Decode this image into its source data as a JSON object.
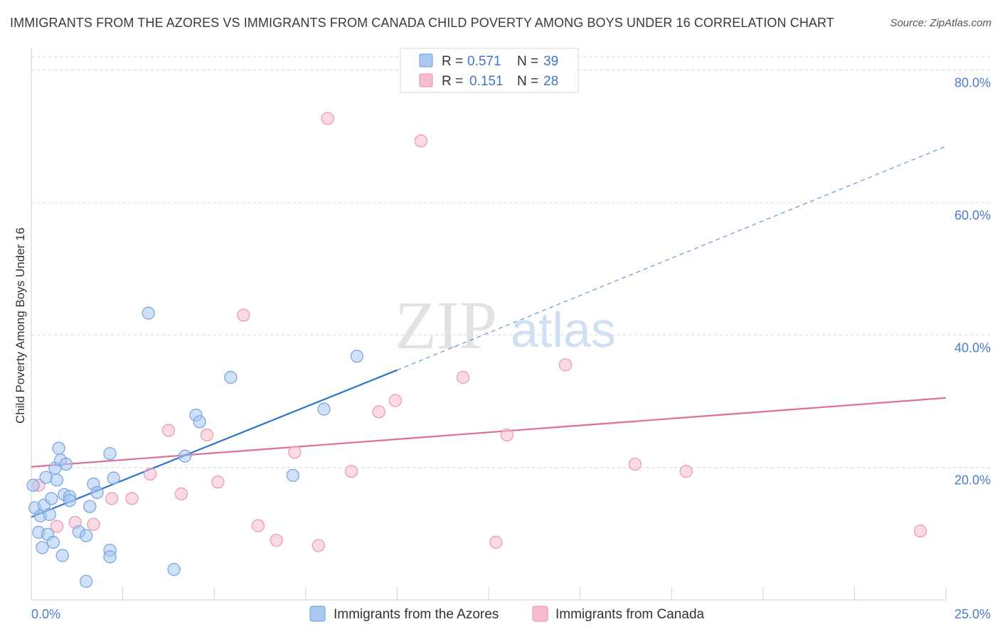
{
  "title": "IMMIGRANTS FROM THE AZORES VS IMMIGRANTS FROM CANADA CHILD POVERTY AMONG BOYS UNDER 16 CORRELATION CHART",
  "source": "Source: ZipAtlas.com",
  "watermark": {
    "zip": "ZIP",
    "atlas": "atlas"
  },
  "colors": {
    "azores_fill": "#aac8f0",
    "azores_stroke": "#7aa6e0",
    "azores_line": "#2f72c9",
    "canada_fill": "#f6bccd",
    "canada_stroke": "#ee9ab4",
    "canada_line": "#e06d96",
    "grid": "#d9d9d9",
    "axis_text": "#4a7bc8"
  },
  "chart_data": {
    "type": "scatter",
    "title": "IMMIGRANTS FROM THE AZORES VS IMMIGRANTS FROM CANADA CHILD POVERTY AMONG BOYS UNDER 16 CORRELATION CHART",
    "xlabel": "",
    "ylabel": "Child Poverty Among Boys Under 16",
    "xlim": [
      0,
      25
    ],
    "ylim": [
      0,
      82
    ],
    "x_tick_labels": [
      "0.0%",
      "25.0%"
    ],
    "y_ticks": [
      20,
      40,
      60,
      80
    ],
    "y_tick_labels": [
      "20.0%",
      "40.0%",
      "60.0%",
      "80.0%"
    ],
    "grid": true,
    "legend_position": "top-center",
    "stats": [
      {
        "r_label": "R = ",
        "r": "0.571",
        "n_label": "N = ",
        "n": "39"
      },
      {
        "r_label": "R = ",
        "r": "0.151",
        "n_label": "N = ",
        "n": "28"
      }
    ],
    "series": [
      {
        "name": "Immigrants from the Azores",
        "trend": {
          "x": [
            0,
            10
          ],
          "y": [
            12.5,
            34.7
          ],
          "dashed_to": [
            25,
            68.5
          ]
        },
        "points": [
          [
            0.05,
            17.3
          ],
          [
            0.1,
            13.9
          ],
          [
            0.2,
            10.2
          ],
          [
            0.25,
            12.7
          ],
          [
            0.3,
            7.9
          ],
          [
            0.35,
            14.3
          ],
          [
            0.4,
            18.5
          ],
          [
            0.45,
            9.9
          ],
          [
            0.5,
            12.9
          ],
          [
            0.55,
            15.3
          ],
          [
            0.6,
            8.7
          ],
          [
            0.65,
            19.9
          ],
          [
            0.7,
            18.1
          ],
          [
            0.75,
            22.9
          ],
          [
            0.8,
            21.1
          ],
          [
            0.85,
            6.7
          ],
          [
            0.9,
            15.9
          ],
          [
            0.95,
            20.5
          ],
          [
            1.05,
            15.6
          ],
          [
            1.05,
            15.0
          ],
          [
            1.3,
            10.3
          ],
          [
            1.5,
            9.7
          ],
          [
            1.5,
            2.8
          ],
          [
            1.6,
            14.1
          ],
          [
            1.7,
            17.5
          ],
          [
            1.8,
            16.2
          ],
          [
            2.15,
            7.5
          ],
          [
            2.15,
            6.5
          ],
          [
            2.25,
            18.4
          ],
          [
            2.15,
            22.1
          ],
          [
            3.2,
            43.3
          ],
          [
            3.9,
            4.6
          ],
          [
            4.2,
            21.7
          ],
          [
            4.5,
            27.9
          ],
          [
            4.6,
            26.9
          ],
          [
            5.45,
            33.6
          ],
          [
            7.15,
            18.8
          ],
          [
            8.0,
            28.8
          ],
          [
            8.9,
            36.8
          ]
        ]
      },
      {
        "name": "Immigrants from Canada",
        "trend": {
          "x": [
            0,
            25
          ],
          "y": [
            20.1,
            30.5
          ]
        },
        "points": [
          [
            0.2,
            17.3
          ],
          [
            0.7,
            11.1
          ],
          [
            1.2,
            11.7
          ],
          [
            1.7,
            11.4
          ],
          [
            2.2,
            15.3
          ],
          [
            2.75,
            15.3
          ],
          [
            3.25,
            19.0
          ],
          [
            3.75,
            25.6
          ],
          [
            4.1,
            16.0
          ],
          [
            4.8,
            24.9
          ],
          [
            5.1,
            17.8
          ],
          [
            5.8,
            43.0
          ],
          [
            6.2,
            11.2
          ],
          [
            6.7,
            9.0
          ],
          [
            7.2,
            22.3
          ],
          [
            7.85,
            8.2
          ],
          [
            8.1,
            72.7
          ],
          [
            8.75,
            19.4
          ],
          [
            9.5,
            28.4
          ],
          [
            9.95,
            30.1
          ],
          [
            10.65,
            69.3
          ],
          [
            11.8,
            33.6
          ],
          [
            12.7,
            8.7
          ],
          [
            13.0,
            24.9
          ],
          [
            14.6,
            35.5
          ],
          [
            16.5,
            20.5
          ],
          [
            17.9,
            19.4
          ],
          [
            24.3,
            10.4
          ]
        ]
      }
    ]
  }
}
